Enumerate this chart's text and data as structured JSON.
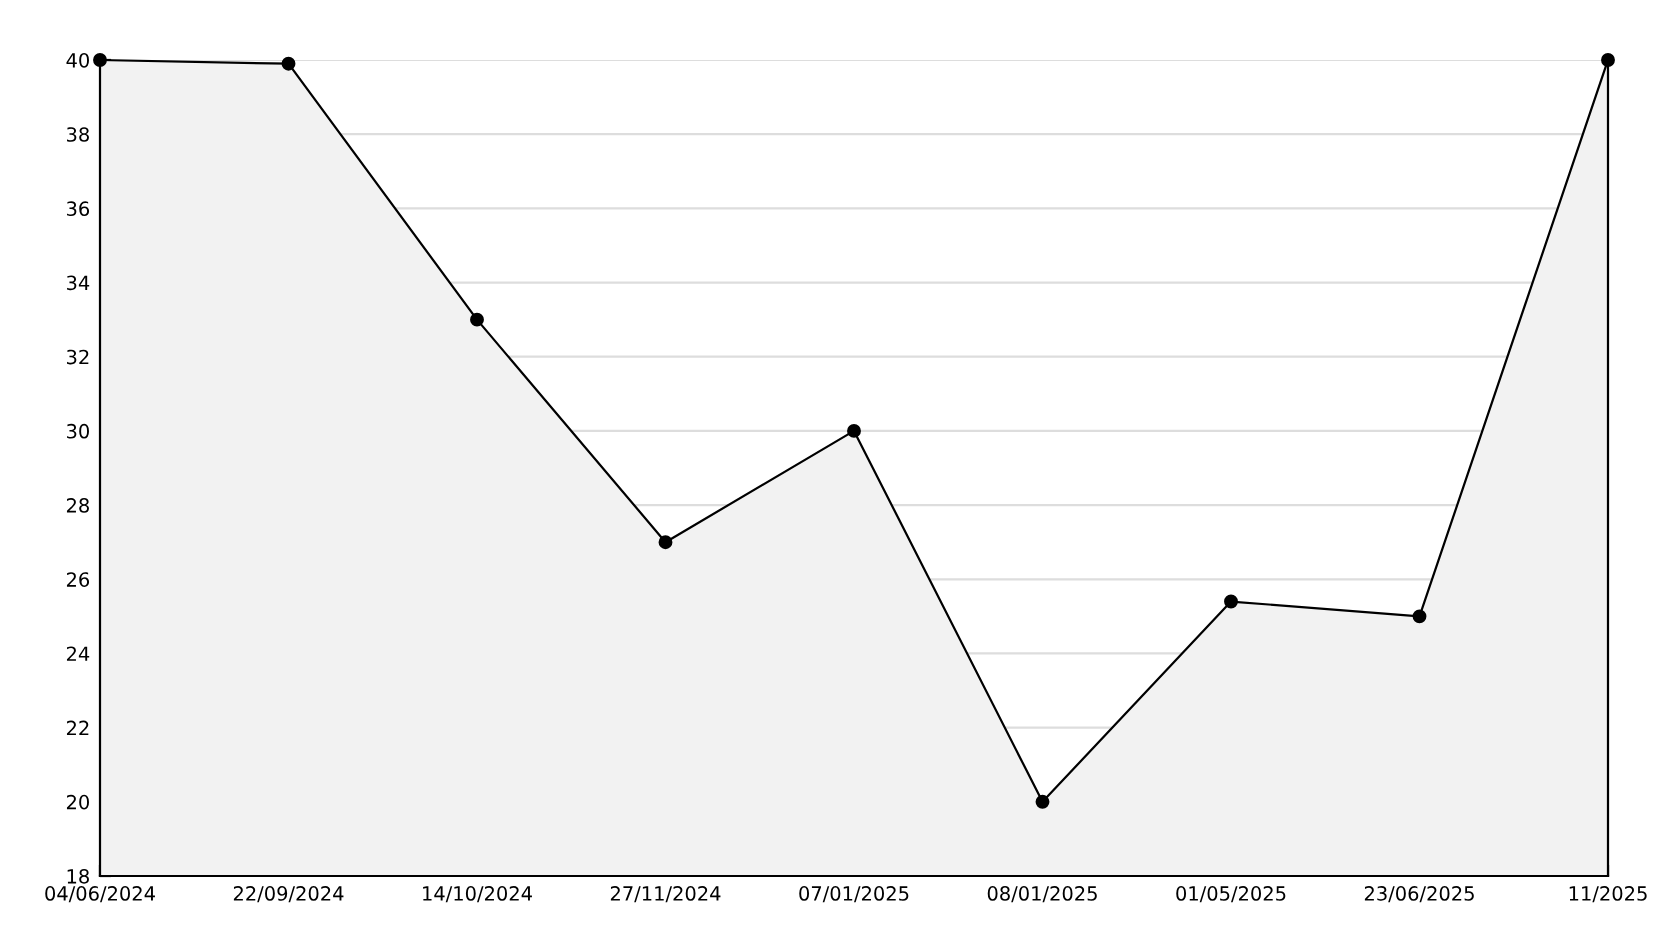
{
  "chart_data": {
    "type": "area",
    "categories": [
      "04/06/2024",
      "22/09/2024",
      "14/10/2024",
      "27/11/2024",
      "07/01/2025",
      "08/01/2025",
      "01/05/2025",
      "23/06/2025",
      "11/2025"
    ],
    "series": [
      {
        "color": "#f2f2f2",
        "values": [
          40,
          39.9,
          33,
          27,
          30,
          20,
          25.4,
          25,
          40
        ]
      }
    ],
    "ylim": [
      18,
      40
    ],
    "yticks": [
      18,
      {
        "value": 19,
        "label": null
      },
      20,
      {
        "value": 21,
        "label": null
      },
      22,
      {
        "value": 23,
        "label": null
      },
      24,
      {
        "value": 25,
        "label": null
      },
      26,
      {
        "value": 27,
        "label": null
      },
      28,
      {
        "value": 29,
        "label": null
      },
      30,
      {
        "value": 31,
        "label": null
      },
      32,
      {
        "value": 33,
        "label": null
      },
      34,
      {
        "value": 35,
        "label": null
      },
      36,
      {
        "value": 37,
        "label": null
      },
      38,
      {
        "value": 39,
        "label": null
      },
      40
    ],
    "grid": "y",
    "marker": "circle",
    "line_style": "solid",
    "legend": false
  }
}
